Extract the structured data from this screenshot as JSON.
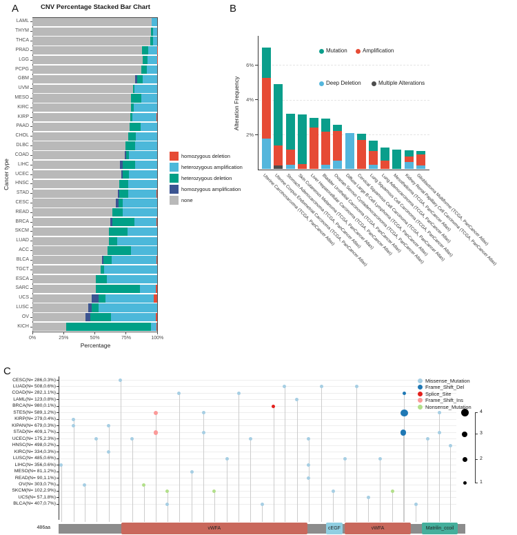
{
  "chart_data": [
    {
      "id": "A",
      "panel_label": "A",
      "type": "bar",
      "orientation": "horizontal_stacked",
      "title": "CNV Percentage Stacked Bar Chart",
      "xlabel": "Percentage",
      "ylabel": "Cancer type",
      "x_ticks": [
        "0%",
        "25%",
        "50%",
        "75%",
        "100%"
      ],
      "x_tick_values": [
        0,
        25,
        50,
        75,
        100
      ],
      "xlim": [
        0,
        100
      ],
      "legend": [
        {
          "label": "homozygous deletion",
          "color": "#e64b35"
        },
        {
          "label": "heterozygous amplification",
          "color": "#4cb8da"
        },
        {
          "label": "heterozygous deletion",
          "color": "#00a087"
        },
        {
          "label": "homozygous amplification",
          "color": "#3b5491"
        },
        {
          "label": "none",
          "color": "#b9b9b9"
        }
      ],
      "categories": [
        "LAML",
        "THYM",
        "THCA",
        "PRAD",
        "LGG",
        "PCPG",
        "GBM",
        "UVM",
        "MESO",
        "KIRC",
        "KIRP",
        "PAAD",
        "CHOL",
        "DLBC",
        "COAD",
        "LIHC",
        "UCEC",
        "HNSC",
        "STAD",
        "CESC",
        "READ",
        "BRCA",
        "SKCM",
        "LUAD",
        "ACC",
        "BLCA",
        "TGCT",
        "ESCA",
        "SARC",
        "UCS",
        "LUSC",
        "OV",
        "KICH"
      ],
      "series": [
        {
          "key": "none",
          "name": "none",
          "color": "#b9b9b9",
          "values": [
            95.3,
            94.9,
            94.4,
            87.5,
            88.0,
            87.4,
            82.0,
            80.3,
            79.0,
            78.7,
            78.4,
            77.5,
            76.5,
            74.5,
            74.0,
            70.0,
            71.0,
            69.5,
            68.5,
            66.5,
            64.0,
            62.5,
            61.5,
            61.5,
            60.0,
            55.5,
            54.5,
            51.0,
            51.0,
            47.5,
            44.7,
            42.7,
            27.0
          ]
        },
        {
          "key": "hom_amp",
          "name": "homozygous amplification",
          "color": "#3b5491",
          "values": [
            0,
            0,
            0,
            0,
            0,
            0,
            1.7,
            0,
            0,
            0,
            0,
            0,
            0,
            0,
            0.8,
            2.5,
            1.5,
            0,
            1.2,
            2.5,
            0,
            1.5,
            0,
            0,
            0,
            1.5,
            0,
            0,
            0,
            5.5,
            2.8,
            3.9,
            0
          ]
        },
        {
          "key": "het_del",
          "name": "heterozygous deletion",
          "color": "#00a087",
          "values": [
            0.3,
            1.9,
            2.4,
            4.9,
            4.3,
            4.3,
            4.6,
            1.2,
            8.0,
            2.5,
            1.8,
            9.0,
            6.0,
            7.5,
            2.7,
            9.5,
            4.5,
            7.0,
            6.8,
            3.5,
            8.5,
            17.5,
            14.5,
            6.5,
            19.0,
            6.5,
            3.0,
            8.5,
            35.0,
            5.6,
            5.5,
            16.4,
            68.0
          ]
        },
        {
          "key": "het_amp",
          "name": "heterozygous amplification",
          "color": "#4cb8da",
          "values": [
            4.4,
            3.2,
            3.2,
            7.3,
            7.4,
            8.3,
            11.7,
            18.5,
            13.0,
            18.8,
            19.3,
            13.5,
            17.5,
            18.0,
            22.5,
            18.0,
            23.0,
            23.5,
            23.0,
            27.5,
            27.5,
            18.0,
            24.0,
            32.0,
            21.0,
            36.0,
            42.5,
            40.5,
            12.5,
            38.4,
            47.0,
            35.5,
            4.5
          ]
        },
        {
          "key": "hom_del",
          "name": "homozygous deletion",
          "color": "#e64b35",
          "values": [
            0,
            0,
            0,
            0.3,
            0.3,
            0,
            0,
            0,
            0,
            0,
            0.5,
            0,
            0,
            0,
            0,
            0,
            0,
            0,
            0.5,
            0,
            0,
            0.5,
            0,
            0,
            0,
            0.5,
            0,
            0,
            1.5,
            3.0,
            0,
            1.5,
            0.5
          ]
        }
      ]
    },
    {
      "id": "B",
      "panel_label": "B",
      "type": "bar",
      "orientation": "vertical_stacked",
      "ylabel": "Alteration Frequency",
      "y_ticks": [
        "2%",
        "4%",
        "6%"
      ],
      "y_tick_values": [
        2,
        4,
        6
      ],
      "ylim": [
        0,
        7.5
      ],
      "legend": [
        {
          "label": "Mutation",
          "color": "#0a9e8b"
        },
        {
          "label": "Amplification",
          "color": "#e64b35"
        },
        {
          "label": "Deep Deletion",
          "color": "#54b6dc"
        },
        {
          "label": "Multiple Alterations",
          "color": "#4d4d4d"
        }
      ],
      "categories": [
        "Uterine Carcinosarcoma (TCGA, PanCancer Atlas)",
        "Uterine Corpus Endometrial Carcinoma (TCGA, PanCancer Atlas)",
        "Stomach Adenocarcinoma (TCGA, PanCancer Atlas)",
        "Skin Cutaneous Melanoma (TCGA, PanCancer Atlas)",
        "Liver Hepatocellular Carcinoma (TCGA, PanCancer Atlas)",
        "Bladder Urothelial Carcinoma (TCGA, PanCancer Atlas)",
        "Ovarian Serous Cystadenocarcinoma (TCGA, PanCancer Atlas)",
        "Diffuse Large B-Cell Lymphoma (TCGA, PanCancer Atlas)",
        "Cervical Squamous Cell Carcinoma (TCGA, PanCancer Atlas)",
        "Lung Squamous Cell Carcinoma (TCGA, PanCancer Atlas)",
        "Lung Adenocarcinoma (TCGA, PanCancer Atlas)",
        "Mesothelioma (TCGA, PanCancer Atlas)",
        "Kidney Renal Papillary Cell Carcinoma (TCGA, PanCancer Atlas)",
        "Glioblastoma Multiforme (TCGA, PanCancer Atlas)"
      ],
      "series": [
        {
          "key": "deep_deletion",
          "name": "Deep Deletion",
          "color": "#54b6dc",
          "values": [
            1.76,
            0,
            0.25,
            0,
            0,
            0.25,
            0.5,
            2.1,
            0,
            0.25,
            0,
            0,
            0.4,
            0.2
          ]
        },
        {
          "key": "multiple_alterations",
          "name": "Multiple Alterations",
          "color": "#4d4d4d",
          "values": [
            0,
            0.2,
            0,
            0,
            0,
            0,
            0,
            0,
            0,
            0,
            0,
            0,
            0,
            0
          ]
        },
        {
          "key": "amplification",
          "name": "Amplification",
          "color": "#e64b35",
          "values": [
            3.5,
            1.15,
            0.9,
            0.3,
            2.4,
            1.9,
            1.7,
            0,
            1.7,
            0.8,
            0.5,
            0,
            0.35,
            0.65
          ]
        },
        {
          "key": "mutation",
          "name": "Mutation",
          "color": "#0a9e8b",
          "values": [
            1.75,
            3.55,
            2.05,
            2.85,
            0.55,
            0.75,
            0.35,
            0,
            0.35,
            0.6,
            0.75,
            1.15,
            0.35,
            0.2
          ]
        }
      ]
    },
    {
      "id": "C",
      "panel_label": "C",
      "type": "lollipop",
      "protein_length": 486,
      "protein_length_label": "486aa",
      "legend": [
        {
          "type": "Missense_Mutation",
          "label": "Missense_Mutation",
          "color": "#a6cee3"
        },
        {
          "type": "Frame_Shift_Del",
          "label": "Frame_Shift_Del",
          "color": "#1f78b4"
        },
        {
          "type": "Splice_Site",
          "label": "Splice_Site",
          "color": "#e3201c"
        },
        {
          "type": "Frame_Shift_Ins",
          "label": "Frame_Shift_Ins",
          "color": "#fb9a99"
        },
        {
          "type": "Nonsense_Mutation",
          "label": "Nonsense_Mutation",
          "color": "#b2df8a"
        }
      ],
      "size_legend": [
        4,
        3,
        2,
        1
      ],
      "domains": [
        {
          "name": "vWFA",
          "start": 75,
          "end": 297,
          "color": "#c9685c"
        },
        {
          "name": "cEGF",
          "start": 320,
          "end": 339,
          "color": "#90cfe2"
        },
        {
          "name": "vWFA",
          "start": 342,
          "end": 421,
          "color": "#c9685c"
        },
        {
          "name": "Matrilin_ccoil",
          "start": 434,
          "end": 477,
          "color": "#45af9c"
        }
      ],
      "rows": [
        {
          "label": "CESC(N= 286,0.3%)",
          "mutations": [
            {
              "pos": 74,
              "type": "Missense_Mutation",
              "size": 1
            }
          ]
        },
        {
          "label": "LUAD(N= 508,0.6%)",
          "mutations": [
            {
              "pos": 270,
              "type": "Missense_Mutation",
              "size": 1
            },
            {
              "pos": 314,
              "type": "Missense_Mutation",
              "size": 1
            },
            {
              "pos": 356,
              "type": "Missense_Mutation",
              "size": 1
            }
          ]
        },
        {
          "label": "COAD(N= 282,1.1%)",
          "mutations": [
            {
              "pos": 144,
              "type": "Missense_Mutation",
              "size": 1
            },
            {
              "pos": 215,
              "type": "Missense_Mutation",
              "size": 1
            },
            {
              "pos": 413,
              "type": "Frame_Shift_Del",
              "size": 1
            }
          ]
        },
        {
          "label": "LAML(N= 123,0.8%)",
          "mutations": [
            {
              "pos": 285,
              "type": "Missense_Mutation",
              "size": 1
            }
          ]
        },
        {
          "label": "BRCA(N= 980,0.1%)",
          "mutations": [
            {
              "pos": 257,
              "type": "Splice_Site",
              "size": 1
            }
          ]
        },
        {
          "label": "STES(N= 589,1.2%)",
          "mutations": [
            {
              "pos": 116,
              "type": "Frame_Shift_Ins",
              "size": 2
            },
            {
              "pos": 173,
              "type": "Missense_Mutation",
              "size": 1
            },
            {
              "pos": 413,
              "type": "Frame_Shift_Del",
              "size": 4
            },
            {
              "pos": 455,
              "type": "Missense_Mutation",
              "size": 1
            }
          ]
        },
        {
          "label": "KIRP(N= 279,0.4%)",
          "mutations": [
            {
              "pos": 18,
              "type": "Missense_Mutation",
              "size": 1
            }
          ]
        },
        {
          "label": "KIPAN(N= 679,0.3%)",
          "mutations": [
            {
              "pos": 18,
              "type": "Missense_Mutation",
              "size": 1
            },
            {
              "pos": 60,
              "type": "Missense_Mutation",
              "size": 1
            }
          ]
        },
        {
          "label": "STAD(N= 409,1.7%)",
          "mutations": [
            {
              "pos": 116,
              "type": "Frame_Shift_Ins",
              "size": 2
            },
            {
              "pos": 173,
              "type": "Missense_Mutation",
              "size": 1
            },
            {
              "pos": 412,
              "type": "Frame_Shift_Del",
              "size": 3
            },
            {
              "pos": 455,
              "type": "Missense_Mutation",
              "size": 1
            }
          ]
        },
        {
          "label": "UCEC(N= 175,2.3%)",
          "mutations": [
            {
              "pos": 45,
              "type": "Missense_Mutation",
              "size": 1
            },
            {
              "pos": 88,
              "type": "Missense_Mutation",
              "size": 1
            },
            {
              "pos": 229,
              "type": "Missense_Mutation",
              "size": 1
            },
            {
              "pos": 299,
              "type": "Missense_Mutation",
              "size": 1
            },
            {
              "pos": 441,
              "type": "Missense_Mutation",
              "size": 1
            }
          ]
        },
        {
          "label": "HNSC(N= 498,0.2%)",
          "mutations": [
            {
              "pos": 468,
              "type": "Missense_Mutation",
              "size": 1
            }
          ]
        },
        {
          "label": "KIRC(N= 334,0.3%)",
          "mutations": [
            {
              "pos": 60,
              "type": "Missense_Mutation",
              "size": 1
            }
          ]
        },
        {
          "label": "LUSC(N= 485,0.6%)",
          "mutations": [
            {
              "pos": 201,
              "type": "Missense_Mutation",
              "size": 1
            },
            {
              "pos": 342,
              "type": "Missense_Mutation",
              "size": 1
            },
            {
              "pos": 384,
              "type": "Missense_Mutation",
              "size": 1
            }
          ]
        },
        {
          "label": "LIHC(N= 356,0.6%)",
          "mutations": [
            {
              "pos": 3,
              "type": "Missense_Mutation",
              "size": 1
            },
            {
              "pos": 299,
              "type": "Missense_Mutation",
              "size": 1
            }
          ]
        },
        {
          "label": "MESO(N= 81,1.2%)",
          "mutations": [
            {
              "pos": 159,
              "type": "Missense_Mutation",
              "size": 1
            }
          ]
        },
        {
          "label": "READ(N= 90,1.1%)",
          "mutations": [
            {
              "pos": 299,
              "type": "Missense_Mutation",
              "size": 1
            }
          ]
        },
        {
          "label": "OV(N= 303,0.7%)",
          "mutations": [
            {
              "pos": 31,
              "type": "Missense_Mutation",
              "size": 1
            },
            {
              "pos": 102,
              "type": "Nonsense_Mutation",
              "size": 1
            }
          ]
        },
        {
          "label": "SKCM(N= 102,2.9%)",
          "mutations": [
            {
              "pos": 130,
              "type": "Nonsense_Mutation",
              "size": 1
            },
            {
              "pos": 186,
              "type": "Nonsense_Mutation",
              "size": 1
            },
            {
              "pos": 328,
              "type": "Missense_Mutation",
              "size": 1
            },
            {
              "pos": 399,
              "type": "Nonsense_Mutation",
              "size": 1
            }
          ]
        },
        {
          "label": "UCS(N= 57,1.8%)",
          "mutations": [
            {
              "pos": 370,
              "type": "Missense_Mutation",
              "size": 1
            }
          ]
        },
        {
          "label": "BLCA(N= 407,0.7%)",
          "mutations": [
            {
              "pos": 130,
              "type": "Missense_Mutation",
              "size": 1
            },
            {
              "pos": 243,
              "type": "Missense_Mutation",
              "size": 1
            },
            {
              "pos": 427,
              "type": "Missense_Mutation",
              "size": 1
            }
          ]
        }
      ]
    }
  ]
}
